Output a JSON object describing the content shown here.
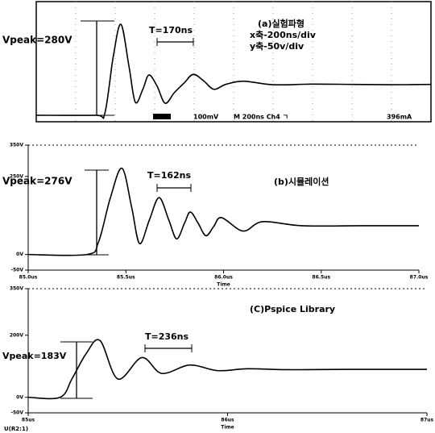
{
  "chart_data": [
    {
      "type": "line",
      "title": "(a)실험파형",
      "annotations": [
        "Vpeak=280V",
        "T=170ns",
        "x축-200ns/div",
        "y축-50v/div",
        "100mV",
        "M 200ns Ch4 ㄱ",
        "396mA"
      ],
      "xlim": [
        0,
        2000
      ],
      "ylim": [
        -20,
        350
      ],
      "x": [
        0,
        300,
        347,
        390,
        429,
        470,
        502,
        540,
        571,
        612,
        653,
        700,
        750,
        796,
        850,
        900,
        960,
        1050,
        1200,
        1400,
        1600,
        1800,
        2000
      ],
      "series": [
        {
          "color": "#000000",
          "values": [
            0,
            0,
            5,
            180,
            280,
            150,
            40,
            80,
            124,
            90,
            37,
            70,
            100,
            126,
            105,
            80,
            95,
            105,
            94,
            96,
            95,
            94,
            95
          ]
        }
      ]
    },
    {
      "type": "line",
      "title": "(b)시뮬레이션",
      "annotations": [
        "Vpeak=276V",
        "T=162ns"
      ],
      "x_label": "Time",
      "xlim": [
        85,
        87
      ],
      "ylim": [
        -50,
        350
      ],
      "xticks": [
        {
          "value": 85,
          "label": "85.0us"
        },
        {
          "value": 85.5,
          "label": "85.5us"
        },
        {
          "value": 86,
          "label": "86.0us"
        },
        {
          "value": 86.5,
          "label": "86.5us"
        },
        {
          "value": 87,
          "label": "87.0us"
        }
      ],
      "yticks": [
        {
          "value": 350,
          "label": "350V"
        },
        {
          "value": 250,
          "label": "250V"
        },
        {
          "value": 0,
          "label": "0V"
        },
        {
          "value": -50,
          "label": "-50V"
        }
      ],
      "x": [
        85,
        85.3,
        85.36,
        85.42,
        85.48,
        85.53,
        85.57,
        85.62,
        85.67,
        85.72,
        85.76,
        85.8,
        85.83,
        85.87,
        85.91,
        85.95,
        85.99,
        86.1,
        86.2,
        86.4,
        86.7,
        87
      ],
      "series": [
        {
          "color": "#000000",
          "values": [
            0,
            0,
            40,
            180,
            276,
            150,
            35,
            110,
            182,
            110,
            50,
            100,
            136,
            100,
            60,
            90,
            118,
            75,
            105,
            92,
            92,
            92
          ]
        }
      ]
    },
    {
      "type": "line",
      "title": "(C)Pspice Library",
      "annotations": [
        "Vpeak=183V",
        "T=236ns"
      ],
      "x_label": "Time",
      "xlim": [
        85,
        87
      ],
      "ylim": [
        -50,
        350
      ],
      "xticks": [
        {
          "value": 85,
          "label": "85us"
        },
        {
          "value": 86,
          "label": "86us"
        },
        {
          "value": 87,
          "label": "87us"
        }
      ],
      "yticks": [
        {
          "value": 350,
          "label": "350V"
        },
        {
          "value": 200,
          "label": "200V"
        },
        {
          "value": 0,
          "label": "0V"
        },
        {
          "value": -50,
          "label": "-50V"
        }
      ],
      "x": [
        85,
        85.16,
        85.22,
        85.29,
        85.36,
        85.45,
        85.57,
        85.67,
        85.81,
        85.95,
        86.1,
        86.3,
        86.6,
        87
      ],
      "series": [
        {
          "name": "U(R2:1)",
          "color": "#000000",
          "values": [
            0,
            0,
            60,
            140,
            183,
            59,
            128,
            77,
            104,
            86,
            92,
            89,
            90,
            90
          ]
        }
      ]
    }
  ]
}
